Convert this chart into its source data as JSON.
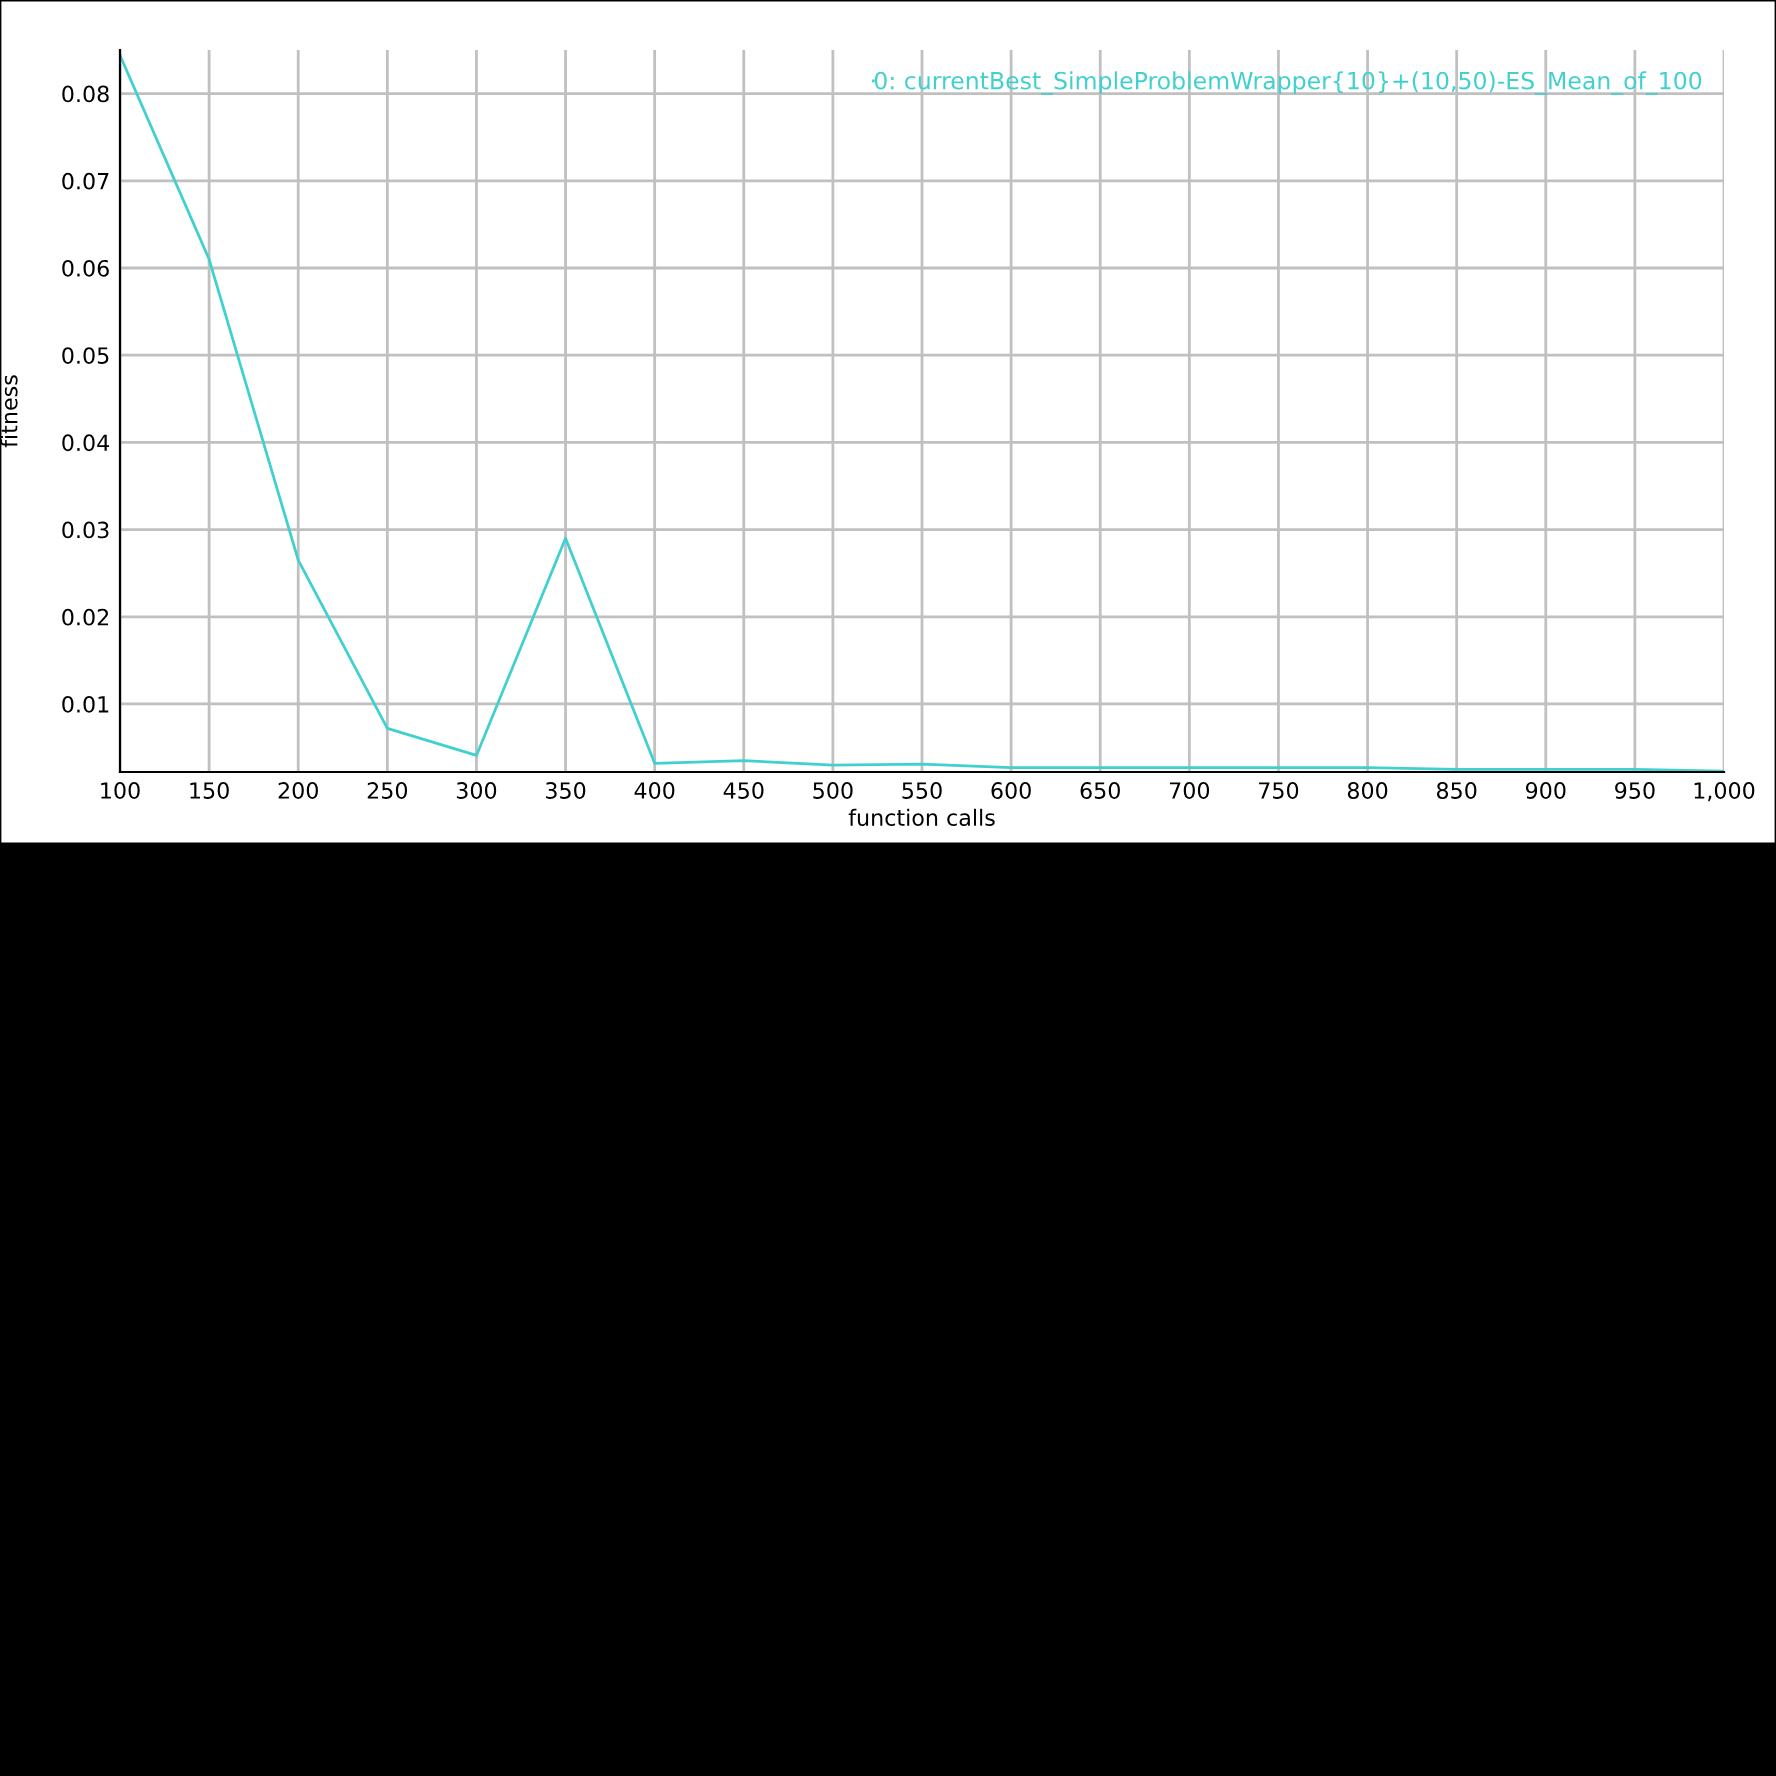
{
  "chart_data": {
    "type": "line",
    "xlabel": "function calls",
    "ylabel": "fitness",
    "x": [
      100,
      150,
      200,
      250,
      300,
      350,
      400,
      450,
      500,
      550,
      600,
      650,
      700,
      750,
      800,
      850,
      900,
      950,
      1000
    ],
    "series": [
      {
        "name": "0: currentBest_SimpleProblemWrapper{10}+(10,50)-ES_Mean_of_100",
        "color": "#40d0d0",
        "values": [
          0.0844,
          0.061,
          0.0265,
          0.0072,
          0.0041,
          0.029,
          0.0032,
          0.0035,
          0.003,
          0.0031,
          0.0027,
          0.0027,
          0.0027,
          0.0027,
          0.0027,
          0.0025,
          0.0025,
          0.0025,
          0.0023
        ]
      }
    ],
    "xlim": [
      100,
      1000
    ],
    "ylim": [
      0.0022,
      0.085
    ],
    "xticks": [
      100,
      150,
      200,
      250,
      300,
      350,
      400,
      450,
      500,
      550,
      600,
      650,
      700,
      750,
      800,
      850,
      900,
      950,
      {
        "value": 1000,
        "label": "1,000"
      }
    ],
    "yticks": [
      0.01,
      0.02,
      0.03,
      0.04,
      0.05,
      0.06,
      0.07,
      0.08
    ],
    "grid": true,
    "legend": "top right",
    "marker": "none",
    "line_style": "solid"
  }
}
